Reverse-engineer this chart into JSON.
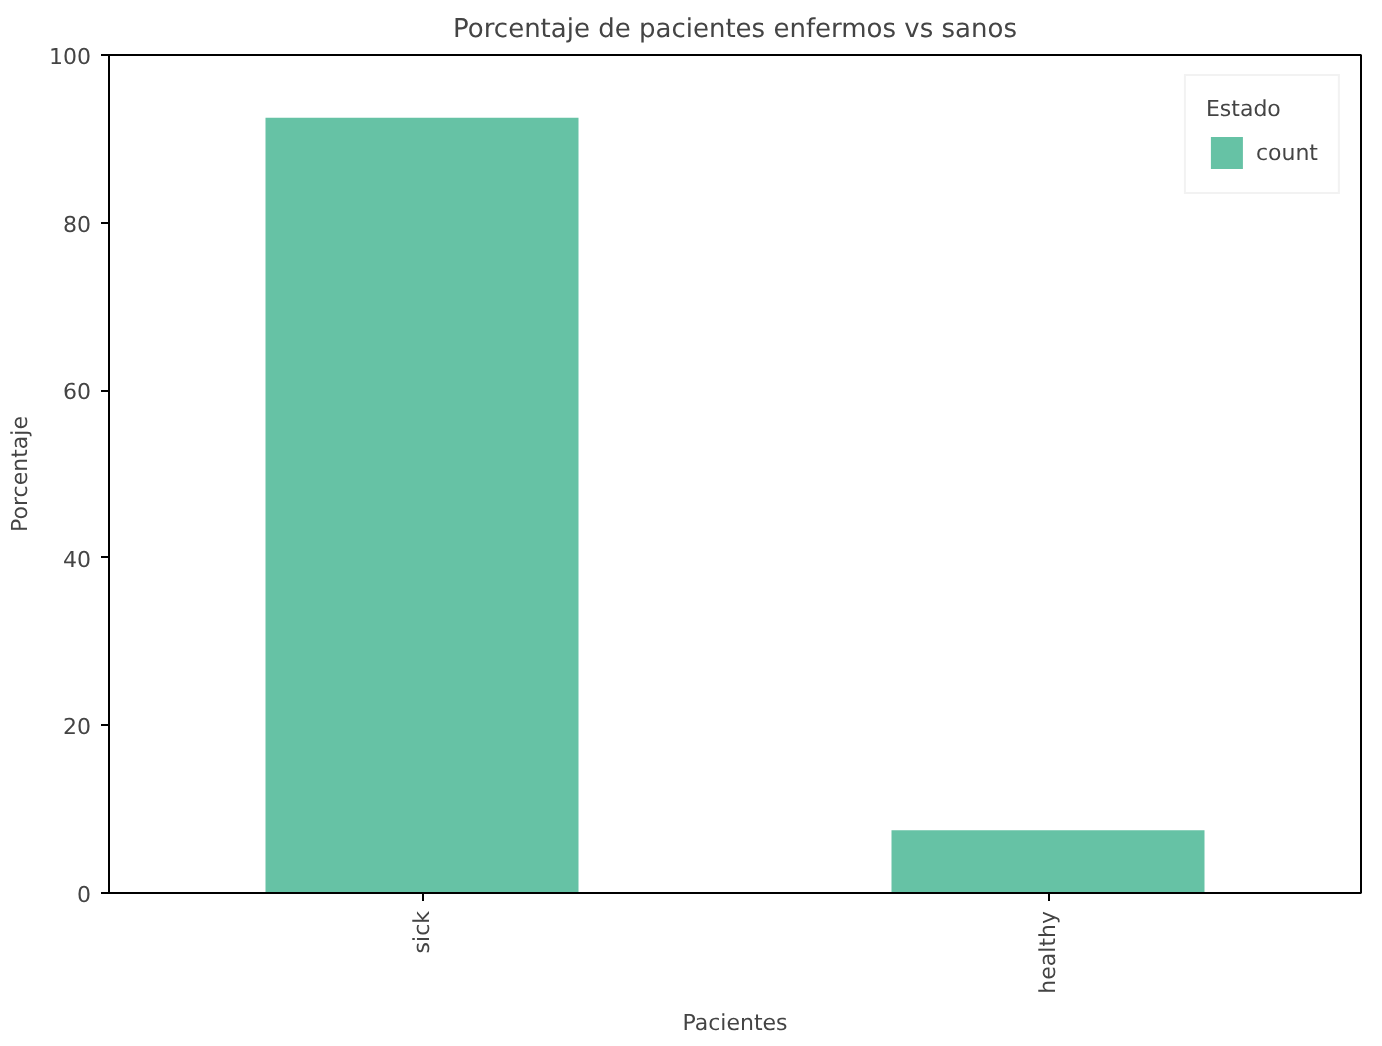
{
  "chart_data": {
    "type": "bar",
    "title": "Porcentaje de pacientes enfermos vs sanos",
    "xlabel": "Pacientes",
    "ylabel": "Porcentaje",
    "legend_title": "Estado",
    "categories": [
      "sick",
      "healthy"
    ],
    "series": [
      {
        "name": "count",
        "color": "#66c2a5",
        "values": [
          92.5,
          7.5
        ]
      }
    ],
    "ylim": [
      0,
      100
    ],
    "yticks": [
      0,
      20,
      40,
      60,
      80,
      100
    ],
    "grid": false,
    "legend": "top right"
  }
}
